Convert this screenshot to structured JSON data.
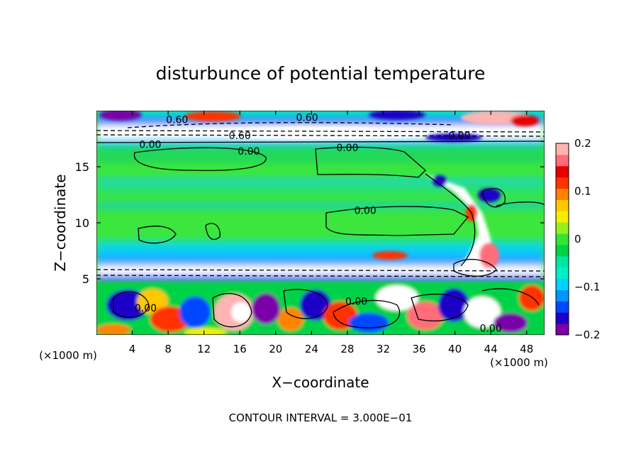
{
  "chart_data": {
    "type": "heatmap",
    "title": "disturbunce of potential temperature",
    "xlabel": "X−coordinate",
    "ylabel": "Z−coordinate",
    "x_unit": "(×1000 m)",
    "y_unit": "(×1000 m)",
    "xlim": [
      0,
      50
    ],
    "ylim": [
      0,
      20
    ],
    "x_ticks": [
      "4",
      "8",
      "12",
      "16",
      "20",
      "24",
      "28",
      "32",
      "36",
      "40",
      "44",
      "48"
    ],
    "x_tick_values": [
      4,
      8,
      12,
      16,
      20,
      24,
      28,
      32,
      36,
      40,
      44,
      48
    ],
    "y_ticks": [
      "5",
      "10",
      "15"
    ],
    "y_tick_values": [
      5,
      10,
      15
    ],
    "footer": "CONTOUR INTERVAL = 3.000E−01",
    "colorbar": {
      "range": [
        -0.2,
        0.2
      ],
      "tick_labels": [
        "0.2",
        "0.1",
        "0",
        "−0.1",
        "−0.2"
      ],
      "tick_values": [
        0.2,
        0.1,
        0,
        -0.1,
        -0.2
      ],
      "colors": [
        "#7a00a8",
        "#1e00c8",
        "#0046ff",
        "#0096ff",
        "#00d2ff",
        "#00f0c8",
        "#00e6a0",
        "#00d246",
        "#32e632",
        "#96f01e",
        "#f0f000",
        "#ffc800",
        "#ff8200",
        "#ff3200",
        "#e60000",
        "#ff6e78",
        "#ffb4b4"
      ]
    },
    "contour_labels": [
      {
        "text": "0.60",
        "x": 9,
        "z": 19.2
      },
      {
        "text": "0.60",
        "x": 23.5,
        "z": 19.4
      },
      {
        "text": "0.60",
        "x": 16,
        "z": 17.8
      },
      {
        "text": "0.00",
        "x": 6,
        "z": 17.0
      },
      {
        "text": "0.00",
        "x": 17,
        "z": 16.4
      },
      {
        "text": "0.00",
        "x": 28,
        "z": 16.7
      },
      {
        "text": "0.00",
        "x": 40.5,
        "z": 17.8
      },
      {
        "text": "0.00",
        "x": 30,
        "z": 11.1
      },
      {
        "text": "0.00",
        "x": 5.5,
        "z": 2.4
      },
      {
        "text": "0.00",
        "x": 29,
        "z": 3.0
      },
      {
        "text": "0.00",
        "x": 44,
        "z": 0.6
      }
    ],
    "grid": false,
    "legend": "colorbar-right"
  }
}
